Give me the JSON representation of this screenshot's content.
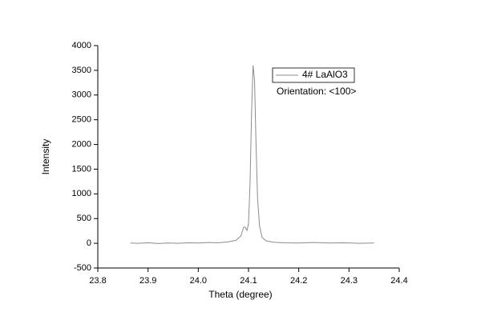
{
  "chart_data": {
    "type": "line",
    "x_label": "Theta (degree)",
    "y_label": "Intensity",
    "annotation": "Orientation: <100>",
    "x": [
      23.865,
      23.88,
      23.9,
      23.92,
      23.94,
      23.96,
      23.98,
      24.0,
      24.02,
      24.04,
      24.06,
      24.075,
      24.085,
      24.09,
      24.093,
      24.097,
      24.1,
      24.103,
      24.106,
      24.109,
      24.112,
      24.115,
      24.118,
      24.122,
      24.127,
      24.135,
      24.15,
      24.17,
      24.2,
      24.23,
      24.26,
      24.29,
      24.32,
      24.35
    ],
    "series": [
      {
        "name": "4# LaAlO3",
        "color": "#8c8c8c",
        "values": [
          5,
          0,
          10,
          -5,
          5,
          0,
          10,
          5,
          15,
          10,
          30,
          60,
          150,
          320,
          330,
          260,
          400,
          1200,
          2600,
          3600,
          3300,
          2000,
          900,
          350,
          120,
          50,
          20,
          10,
          5,
          15,
          5,
          10,
          0,
          5
        ]
      }
    ],
    "xlim": [
      23.8,
      24.4
    ],
    "xticks": [
      23.8,
      23.9,
      {
        "value": 24,
        "label": "24.0"
      },
      24.1,
      24.2,
      24.3,
      24.4
    ],
    "ylim": [
      -500,
      4000
    ],
    "yticks": [
      -500,
      0,
      500,
      1000,
      1500,
      2000,
      2500,
      3000,
      3500,
      4000
    ],
    "grid": false
  }
}
